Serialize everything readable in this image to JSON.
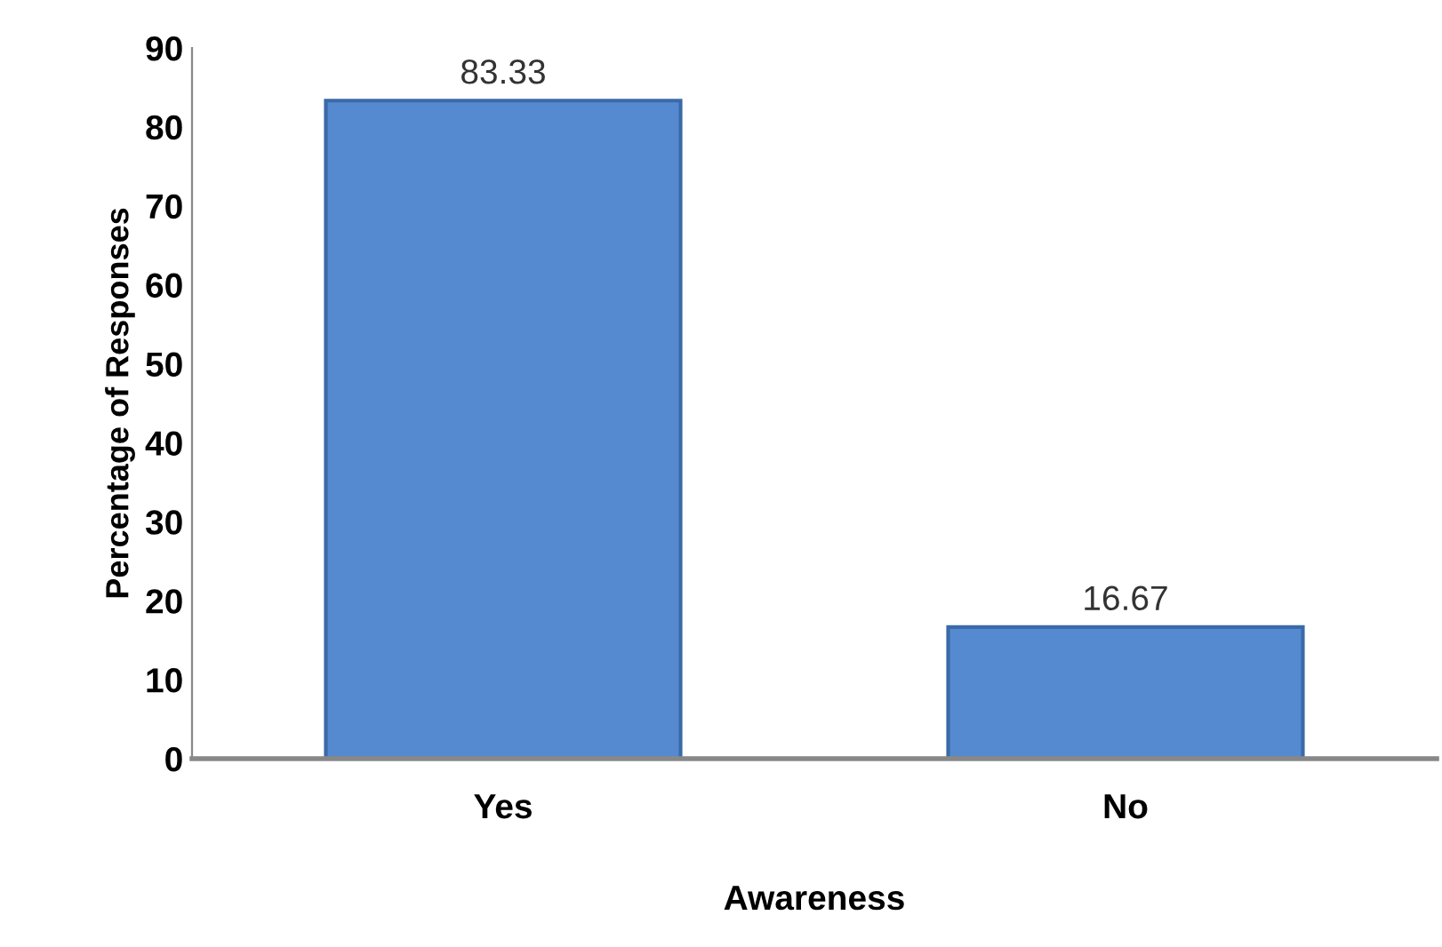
{
  "chart_data": {
    "type": "bar",
    "xlabel": "Awareness",
    "ylabel": "Percentage of Responses",
    "categories": [
      "Yes",
      "No"
    ],
    "values": [
      83.33,
      16.67
    ],
    "color": "#558ad0",
    "ylim": [
      0,
      90
    ],
    "yticks": [
      0,
      10,
      20,
      30,
      40,
      50,
      60,
      70,
      80,
      90
    ],
    "data_labels": true,
    "grid": false,
    "legend": false
  }
}
